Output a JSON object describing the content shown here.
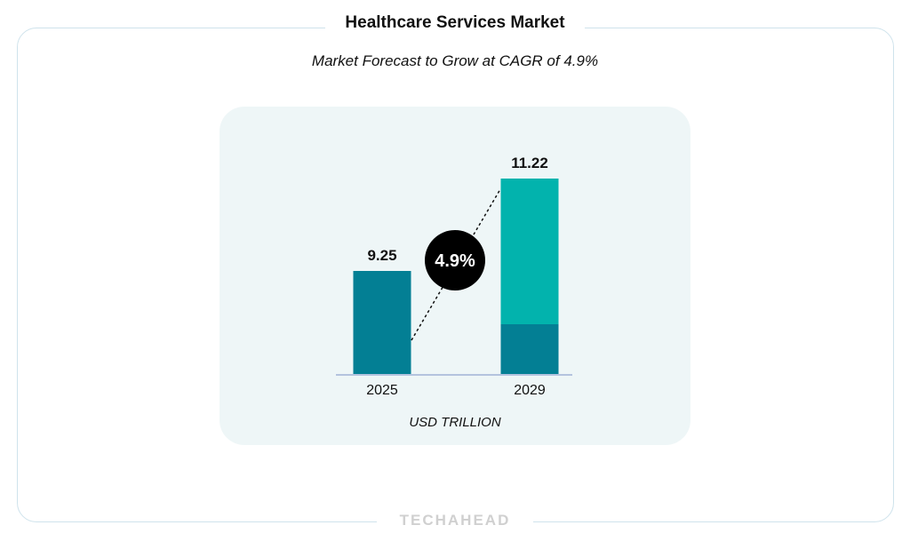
{
  "title": "Healthcare Services Market",
  "subtitle": "Market Forecast to Grow at CAGR of 4.9%",
  "brand": "TECHAHEAD",
  "colors": {
    "bar": "#037f94",
    "bar_top": "#02b3ad",
    "badge": "#000000",
    "baseline": "#b4c3de",
    "panel": "#eef6f7",
    "frame": "#cfe3ec"
  },
  "chart_data": {
    "type": "bar",
    "title": "Healthcare Services Market",
    "subtitle": "Market Forecast to Grow at CAGR of 4.9%",
    "categories": [
      "2025",
      "2029"
    ],
    "values": [
      9.25,
      11.22
    ],
    "value_labels": [
      "9.25",
      "11.22"
    ],
    "highlight_segment": {
      "category": "2029",
      "from": 9.25,
      "to": 11.22
    },
    "cagr_label": "4.9%",
    "xlabel": "USD TRILLION",
    "ylabel": "",
    "grid": false
  }
}
